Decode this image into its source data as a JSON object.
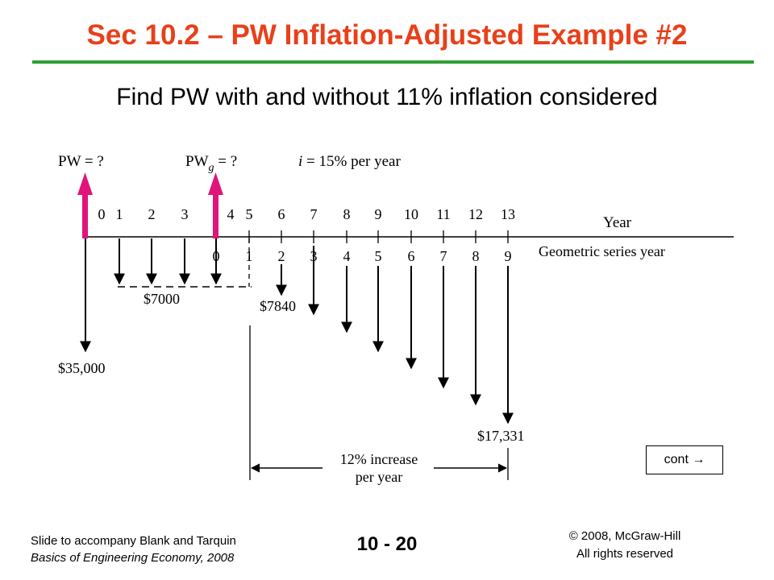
{
  "slide": {
    "title": "Sec 10.2 – PW Inflation-Adjusted Example #2",
    "subtitle": "Find PW with and without 11% inflation considered",
    "colors": {
      "title": "#e8401a",
      "rule": "#2e9e35",
      "pw_arrow": "#e0147a"
    }
  },
  "diagram": {
    "pw_label": "PW = ?",
    "pwg_label_main": "PW",
    "pwg_label_sub": "g",
    "pwg_label_tail": " = ?",
    "interest_label_i": "i",
    "interest_label_rest": " = 15% per year",
    "year_axis_label": "Year",
    "geo_axis_label": "Geometric series year",
    "year_ticks": [
      "0",
      "1",
      "2",
      "3",
      "4",
      "5",
      "6",
      "7",
      "8",
      "9",
      "10",
      "11",
      "12",
      "13"
    ],
    "geo_ticks": [
      "0",
      "1",
      "2",
      "3",
      "4",
      "5",
      "6",
      "7",
      "8",
      "9"
    ],
    "initial_cost": "$35,000",
    "annual_cost": "$7000",
    "first_geo_cost": "$7840",
    "last_geo_cost": "$17,331",
    "increase_line1": "12% increase",
    "increase_line2": "per year"
  },
  "nav": {
    "cont_label": "cont →"
  },
  "footer": {
    "left_line1": "Slide to accompany Blank and Tarquin",
    "left_line2": "Basics of Engineering Economy, 2008",
    "page_number": "10 - 20",
    "right_line1": "© 2008, McGraw-Hill",
    "right_line2": "All rights reserved"
  }
}
